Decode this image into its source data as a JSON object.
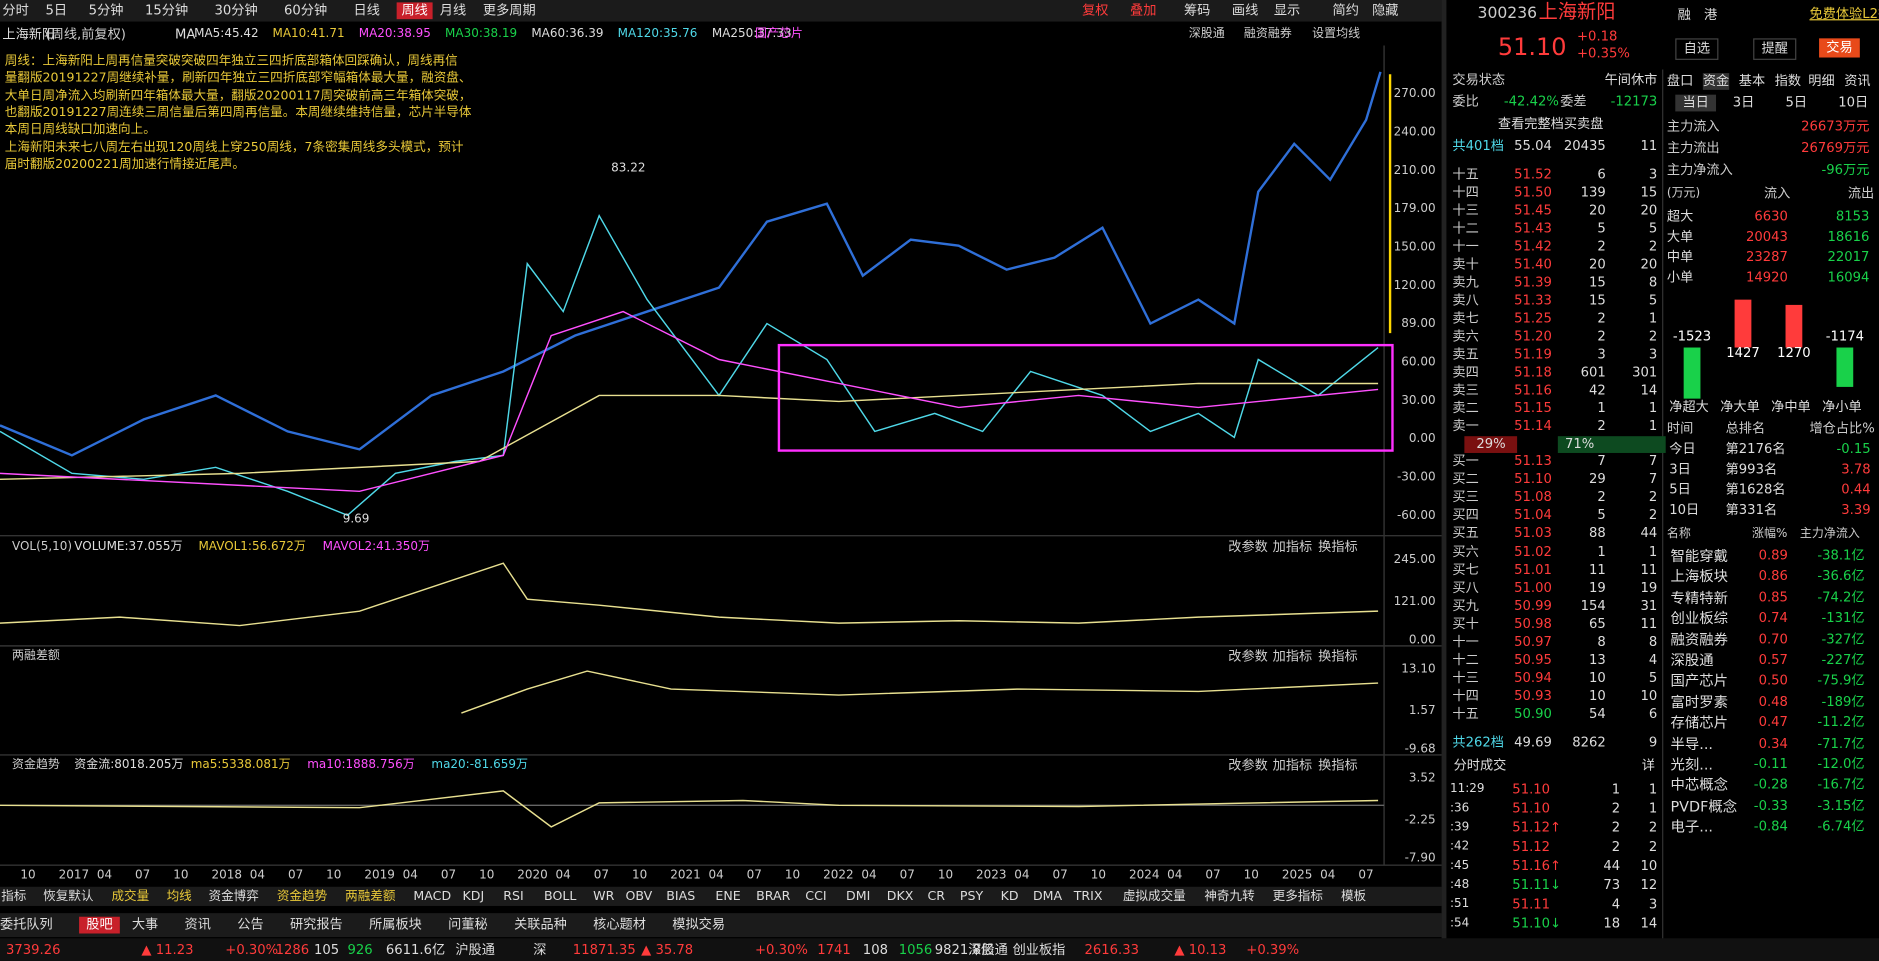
{
  "toolbar": {
    "periods": [
      "分时",
      "5日",
      "5分钟",
      "15分钟",
      "30分钟",
      "60分钟",
      "日线",
      "周线",
      "月线",
      "更多周期"
    ],
    "right": [
      "复权",
      "叠加",
      "筹码",
      "画线",
      "显示",
      "简约",
      "隐藏"
    ]
  },
  "chart": {
    "name": "上海新阳",
    "mode": "(周线,前复权)",
    "ma_label": "MA",
    "ma": [
      "MA5:45.42",
      "MA10:41.71",
      "MA20:38.95",
      "MA30:38.19",
      "MA60:36.39",
      "MA120:35.76",
      "MA250:37.33"
    ],
    "tag": "国产芯片",
    "tools": [
      "深股通",
      "融资融券",
      "设置均线"
    ],
    "annotation": [
      "周线：上海新阳上周再信量突破突破四年独立三四折底部箱体回踩确认，周线再信",
      "量翻版20191227周继续补量，刷新四年独立三四折底部窄幅箱体最大量，融资盘、",
      "大单日周净流入均刷新四年箱体最大量，翻版20200117周突破前高三年箱体突破，",
      "也翻版20191227周连续三周信量后第四周再信量。本周继续维持信量，芯片半导体",
      "本周日周线缺口加速向上。",
      "上海新阳未来七八周左右出现120周线上穿250周线，7条密集周线多头模式，预计",
      "届时翻版20200221周加速行情接近尾声。"
    ],
    "yticks": [
      "270.00",
      "240.00",
      "210.00",
      "179.00",
      "150.00",
      "120.00",
      "89.00",
      "60.00",
      "30.00",
      "0.00",
      "-30.00",
      "-60.00"
    ],
    "high": "83.22",
    "low": "9.69"
  },
  "panels": [
    {
      "title": "VOL(5,10)",
      "items": [
        "VOLUME:37.055万",
        "MAVOL1:56.672万",
        "MAVOL2:41.350万"
      ],
      "yticks": [
        "245.00",
        "121.00",
        "0.00"
      ]
    },
    {
      "title": "两融差额",
      "items": [],
      "yticks": [
        "13.10",
        "1.57",
        "-9.68"
      ]
    },
    {
      "title": "资金趋势",
      "items": [
        "资金流:8018.205万",
        "ma5:5338.081万",
        "ma10:1888.756万",
        "ma20:-81.659万"
      ],
      "yticks": [
        "3.52",
        "-2.25",
        "-7.90"
      ]
    }
  ],
  "panel_buttons": [
    "改参数",
    "加指标",
    "换指标"
  ],
  "xaxis": [
    "10",
    "2017",
    "04",
    "07",
    "10",
    "2018",
    "04",
    "07",
    "10",
    "2019",
    "04",
    "07",
    "10",
    "2020",
    "04",
    "07",
    "10",
    "2021",
    "04",
    "07",
    "10",
    "2022",
    "04",
    "07",
    "10",
    "2023",
    "04",
    "07",
    "10",
    "2024",
    "04",
    "07",
    "10",
    "2025",
    "04",
    "07"
  ],
  "indicators": [
    "指标",
    "恢复默认",
    "成交量",
    "均线",
    "资金博弈",
    "资金趋势",
    "两融差额",
    "MACD",
    "KDJ",
    "RSI",
    "BOLL",
    "WR",
    "OBV",
    "BIAS",
    "ENE",
    "BRAR",
    "CCI",
    "DMI",
    "DKX",
    "CR",
    "PSY",
    "KD",
    "DMA",
    "TRIX",
    "虚拟成交量",
    "神奇九转",
    "更多指标",
    "模板"
  ],
  "bottom_tabs": [
    "委托队列",
    "股吧",
    "大事",
    "资讯",
    "公告",
    "研究报告",
    "所属板块",
    "问董秘",
    "关联品种",
    "核心题材",
    "模拟交易"
  ],
  "status": [
    "3739.26",
    "▲ 11.23",
    "+0.30%",
    "1286",
    "105",
    "926",
    "6611.6亿",
    "沪股通",
    "深",
    "11871.35",
    "▲ 35.78",
    "+0.30%",
    "1741",
    "108",
    "1056",
    "9821.8亿",
    "深股通",
    "创业板指",
    "2616.33",
    "▲ 10.13",
    "+0.39%"
  ],
  "quote": {
    "code": "300236",
    "name": "上海新阳",
    "tags": [
      "融",
      "港"
    ],
    "l2": "免费体验L2行情",
    "price": "51.10",
    "change": "+0.18",
    "pct": "+0.35%",
    "buttons": [
      "自选",
      "提醒",
      "交易"
    ],
    "state_label": "交易状态",
    "state": "午间休市",
    "wb_label": "委比",
    "wb": "-42.42%",
    "wc_label": "委差",
    "wc": "-12173",
    "full": "查看完整档买卖盘",
    "sell_total": [
      "共401档",
      "55.04",
      "20435",
      "11"
    ],
    "sells": [
      [
        "十五",
        "51.52",
        "6",
        "3"
      ],
      [
        "十四",
        "51.50",
        "139",
        "15"
      ],
      [
        "十三",
        "51.45",
        "20",
        "20"
      ],
      [
        "十二",
        "51.43",
        "5",
        "5"
      ],
      [
        "十一",
        "51.42",
        "2",
        "2"
      ],
      [
        "卖十",
        "51.40",
        "20",
        "20"
      ],
      [
        "卖九",
        "51.39",
        "15",
        "8"
      ],
      [
        "卖八",
        "51.33",
        "15",
        "5"
      ],
      [
        "卖七",
        "51.25",
        "2",
        "1"
      ],
      [
        "卖六",
        "51.20",
        "2",
        "2"
      ],
      [
        "卖五",
        "51.19",
        "3",
        "3"
      ],
      [
        "卖四",
        "51.18",
        "601",
        "301"
      ],
      [
        "卖三",
        "51.16",
        "42",
        "14"
      ],
      [
        "卖二",
        "51.15",
        "1",
        "1"
      ],
      [
        "卖一",
        "51.14",
        "2",
        "1"
      ]
    ],
    "ratio": [
      "29%",
      "71%"
    ],
    "buys": [
      [
        "买一",
        "51.13",
        "7",
        "7"
      ],
      [
        "买二",
        "51.10",
        "29",
        "7"
      ],
      [
        "买三",
        "51.08",
        "2",
        "2"
      ],
      [
        "买四",
        "51.04",
        "5",
        "2"
      ],
      [
        "买五",
        "51.03",
        "88",
        "44"
      ],
      [
        "买六",
        "51.02",
        "1",
        "1"
      ],
      [
        "买七",
        "51.01",
        "11",
        "11"
      ],
      [
        "买八",
        "51.00",
        "19",
        "19"
      ],
      [
        "买九",
        "50.99",
        "154",
        "31"
      ],
      [
        "买十",
        "50.98",
        "65",
        "11"
      ],
      [
        "十一",
        "50.97",
        "8",
        "8"
      ],
      [
        "十二",
        "50.95",
        "13",
        "4"
      ],
      [
        "十三",
        "50.94",
        "10",
        "5"
      ],
      [
        "十四",
        "50.93",
        "10",
        "10"
      ],
      [
        "十五",
        "50.90",
        "54",
        "6"
      ]
    ],
    "buy_total": [
      "共262档",
      "49.69",
      "8262",
      "9"
    ],
    "trades_title": "分时成交",
    "trades_more": "详",
    "trades": [
      [
        "11:29",
        "51.10",
        "1",
        "1"
      ],
      [
        ":36",
        "51.10",
        "2",
        "1"
      ],
      [
        ":39",
        "51.12↑",
        "2",
        "2"
      ],
      [
        ":42",
        "51.12",
        "2",
        "2"
      ],
      [
        ":45",
        "51.16↑",
        "44",
        "10"
      ],
      [
        ":48",
        "51.11↓",
        "73",
        "12"
      ],
      [
        ":51",
        "51.11",
        "4",
        "3"
      ],
      [
        ":54",
        "51.10↓",
        "18",
        "14"
      ]
    ]
  },
  "funds": {
    "tabs": [
      "盘口",
      "资金",
      "基本",
      "指数",
      "明细",
      "资讯"
    ],
    "periods": [
      "当日",
      "3日",
      "5日",
      "10日"
    ],
    "main": [
      [
        "主力流入",
        "26673万元"
      ],
      [
        "主力流出",
        "26769万元"
      ],
      [
        "主力净流入",
        "-96万元"
      ]
    ],
    "head": [
      "(万元)",
      "流入",
      "流出"
    ],
    "rows": [
      [
        "超大",
        "6630",
        "8153"
      ],
      [
        "大单",
        "20043",
        "18616"
      ],
      [
        "中单",
        "23287",
        "22017"
      ],
      [
        "小单",
        "14920",
        "16094"
      ]
    ],
    "net": {
      "categories": [
        "净超大",
        "净大单",
        "净中单",
        "净小单"
      ],
      "values": [
        -1523,
        1427,
        1270,
        -1174
      ],
      "colors": [
        "#19d14a",
        "#ff3b3b",
        "#ff3b3b",
        "#19d14a"
      ]
    },
    "rank_head": [
      "时间",
      "总排名",
      "增仓占比%"
    ],
    "ranks": [
      [
        "今日",
        "第2176名",
        "-0.15"
      ],
      [
        "3日",
        "第993名",
        "3.78"
      ],
      [
        "5日",
        "第1628名",
        "0.44"
      ],
      [
        "10日",
        "第331名",
        "3.39"
      ]
    ],
    "sector_head": [
      "名称",
      "涨幅%",
      "主力净流入"
    ],
    "sectors": [
      [
        "智能穿戴",
        "0.89",
        "-38.1亿"
      ],
      [
        "上海板块",
        "0.86",
        "-36.6亿"
      ],
      [
        "专精特新",
        "0.85",
        "-74.2亿"
      ],
      [
        "创业板综",
        "0.74",
        "-131亿"
      ],
      [
        "融资融券",
        "0.70",
        "-327亿"
      ],
      [
        "深股通",
        "0.57",
        "-227亿"
      ],
      [
        "国产芯片",
        "0.50",
        "-75.9亿"
      ],
      [
        "富时罗素",
        "0.48",
        "-189亿"
      ],
      [
        "存储芯片",
        "0.47",
        "-11.2亿"
      ],
      [
        "半导...",
        "0.34",
        "-71.7亿"
      ],
      [
        "光刻...",
        "-0.11",
        "-12.0亿"
      ],
      [
        "中芯概念",
        "-0.28",
        "-16.7亿"
      ],
      [
        "PVDF概念",
        "-0.33",
        "-3.15亿"
      ],
      [
        "电子...",
        "-0.84",
        "-6.74亿"
      ]
    ]
  }
}
